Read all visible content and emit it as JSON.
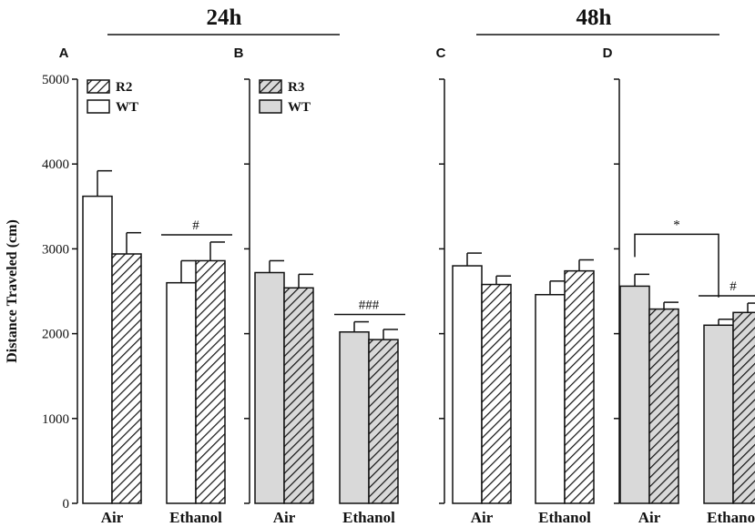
{
  "chart_data": {
    "type": "bar",
    "ylabel": "Distance Traveled (cm)",
    "ylim": [
      0,
      5000
    ],
    "yticks": [
      0,
      1000,
      2000,
      3000,
      4000,
      5000
    ],
    "ytick_labels": [
      "0",
      "1000",
      "2000",
      "3000",
      "4000",
      "5000"
    ],
    "time_labels": [
      "24h",
      "48h"
    ],
    "categories": [
      "Air",
      "Ethanol"
    ],
    "colors": {
      "white": "#ffffff",
      "gray": "#d9d9d9",
      "ink": "#111111"
    },
    "panels": [
      {
        "letter": "A",
        "time": "24h",
        "legend": [
          {
            "name": "R2",
            "style": "hatch-white"
          },
          {
            "name": "WT",
            "style": "white"
          }
        ],
        "series": [
          {
            "name": "WT",
            "style": "white",
            "values": [
              3620,
              2600
            ],
            "errors": [
              300,
              260
            ]
          },
          {
            "name": "R2",
            "style": "hatch-white",
            "values": [
              2940,
              2860
            ],
            "errors": [
              250,
              220
            ]
          }
        ],
        "annotations": [
          {
            "text": "#",
            "type": "bracket-group",
            "category": "Ethanol"
          }
        ]
      },
      {
        "letter": "B",
        "time": "24h",
        "legend": [
          {
            "name": "R3",
            "style": "hatch-gray"
          },
          {
            "name": "WT",
            "style": "gray"
          }
        ],
        "series": [
          {
            "name": "WT",
            "style": "gray",
            "values": [
              2720,
              2020
            ],
            "errors": [
              140,
              120
            ]
          },
          {
            "name": "R3",
            "style": "hatch-gray",
            "values": [
              2540,
              1930
            ],
            "errors": [
              160,
              120
            ]
          }
        ],
        "annotations": [
          {
            "text": "###",
            "type": "bracket-group",
            "category": "Ethanol"
          }
        ]
      },
      {
        "letter": "C",
        "time": "48h",
        "legend": [],
        "series": [
          {
            "name": "WT",
            "style": "white",
            "values": [
              2800,
              2460
            ],
            "errors": [
              150,
              160
            ]
          },
          {
            "name": "R2",
            "style": "hatch-white",
            "values": [
              2580,
              2740
            ],
            "errors": [
              100,
              130
            ]
          }
        ],
        "annotations": []
      },
      {
        "letter": "D",
        "time": "48h",
        "legend": [],
        "series": [
          {
            "name": "WT",
            "style": "gray",
            "values": [
              2560,
              2100
            ],
            "errors": [
              140,
              70
            ]
          },
          {
            "name": "R3",
            "style": "hatch-gray",
            "values": [
              2290,
              2250
            ],
            "errors": [
              80,
              110
            ]
          }
        ],
        "annotations": [
          {
            "text": "*",
            "type": "bracket-cross",
            "from": "Air-WT",
            "to": "Ethanol-WT"
          },
          {
            "text": "#",
            "type": "bracket-group",
            "category": "Ethanol"
          }
        ]
      }
    ]
  }
}
